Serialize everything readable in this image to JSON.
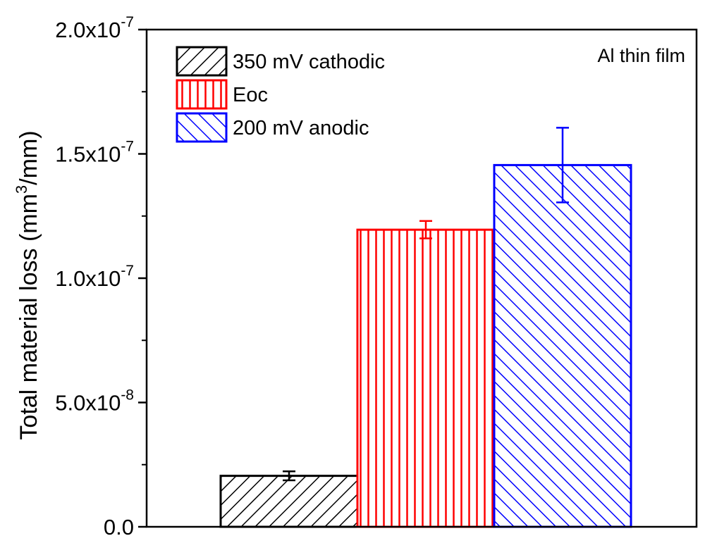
{
  "chart_data": {
    "type": "bar",
    "title": "",
    "xlabel": "",
    "ylabel": {
      "prefix": "Total material loss (mm",
      "superscript": "3",
      "suffix": "/mm)"
    },
    "ylim": [
      0,
      2e-07
    ],
    "yticks": [
      {
        "value": 0,
        "mantissa": "0.0",
        "exponent": ""
      },
      {
        "value": 5e-08,
        "mantissa": "5.0x10",
        "exponent": "-8"
      },
      {
        "value": 1e-07,
        "mantissa": "1.0x10",
        "exponent": "-7"
      },
      {
        "value": 1.5e-07,
        "mantissa": "1.5x10",
        "exponent": "-7"
      },
      {
        "value": 2e-07,
        "mantissa": "2.0x10",
        "exponent": "-7"
      }
    ],
    "series": [
      {
        "name": "350 mV cathodic",
        "value": 2.05e-08,
        "error": 1.8e-09,
        "color": "#000000",
        "pattern": "diag-up"
      },
      {
        "name": "Eoc",
        "value": 1.195e-07,
        "error": 3.5e-09,
        "color": "#ff0000",
        "pattern": "vertical"
      },
      {
        "name": "200 mV anodic",
        "value": 1.455e-07,
        "error": 1.5e-08,
        "color": "#0000ff",
        "pattern": "diag-down"
      }
    ],
    "annotation": "Al thin film",
    "legend_position": "top-left"
  }
}
